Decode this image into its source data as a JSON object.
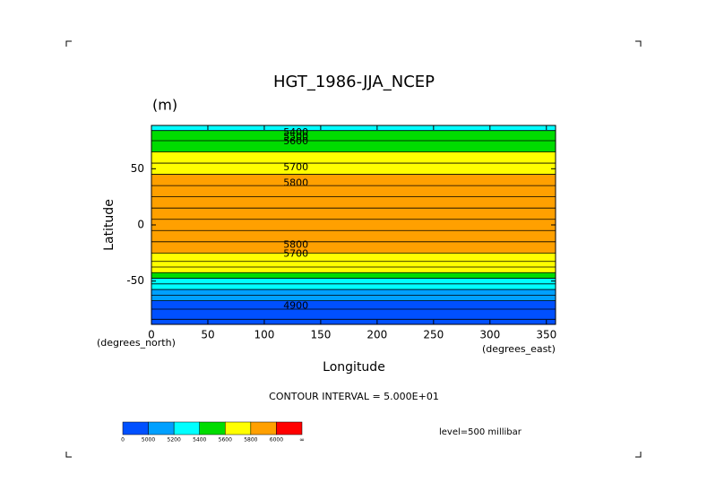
{
  "chart_data": {
    "type": "contour",
    "title": "HGT_1986-JJA_NCEP",
    "units": "(m)",
    "x_label": "Longitude",
    "y_label": "Latitude",
    "x_units": "(degrees_east)",
    "y_units": "(degrees_north)",
    "xlim": [
      0,
      358.125
    ],
    "xticks": [
      0,
      50,
      100,
      150,
      200,
      250,
      300,
      350
    ],
    "ylim": [
      -88.542,
      88.542
    ],
    "yticks": [
      -50,
      0,
      50
    ],
    "zonal_mean": {
      "lat": [
        88,
        80,
        70,
        60,
        50,
        40,
        30,
        20,
        10,
        0,
        -10,
        -20,
        -30,
        -35,
        -40,
        -45,
        -50,
        -55,
        -60,
        -65,
        -70,
        -80,
        -88
      ],
      "values": [
        5380,
        5480,
        5560,
        5620,
        5700,
        5800,
        5870,
        5880,
        5890,
        5880,
        5870,
        5850,
        5760,
        5700,
        5600,
        5500,
        5380,
        5250,
        5120,
        5020,
        4960,
        4950,
        4950
      ]
    },
    "contour_labels": [
      {
        "value": 5400,
        "lon": 128,
        "lat": 82
      },
      {
        "value": 5500,
        "lon": 128,
        "lat": 78
      },
      {
        "value": 5600,
        "lon": 128,
        "lat": 74
      },
      {
        "value": 5700,
        "lon": 128,
        "lat": 51
      },
      {
        "value": 5800,
        "lon": 128,
        "lat": 37
      },
      {
        "value": 5800,
        "lon": 128,
        "lat": -18
      },
      {
        "value": 5700,
        "lon": 128,
        "lat": -26
      },
      {
        "value": 4900,
        "lon": 128,
        "lat": -72
      }
    ],
    "contour_interval": "CONTOUR INTERVAL = 5.000E+01",
    "level": "level=500 millibar",
    "colorbar": {
      "levels": [
        0,
        5000,
        5200,
        5400,
        5600,
        5800,
        6000
      ],
      "end_label": "∞",
      "colors": [
        "#0050ff",
        "#00a0ff",
        "#00ffff",
        "#00dc00",
        "#ffff00",
        "#ffa000",
        "#ff0000"
      ]
    }
  }
}
